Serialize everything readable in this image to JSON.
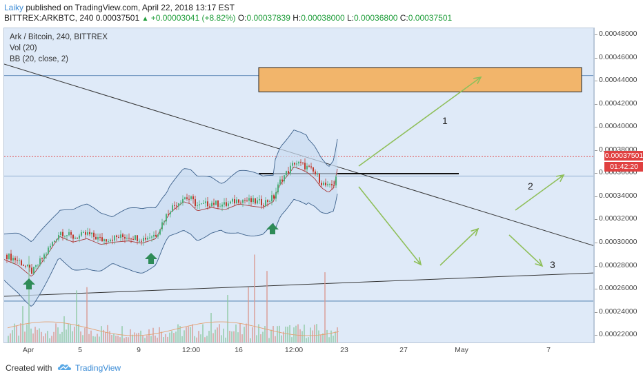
{
  "header": {
    "author": "Laiky",
    "published_text": "published on TradingView.com, April 22, 2018 13:17 EST",
    "symbol_line": "BITTREX:ARKBTC, 240",
    "last": "0.00037501",
    "change": "+0.00003041 (+8.82%)",
    "o_label": "O:",
    "o_value": "0.00037839",
    "h_label": "H:",
    "h_value": "0.00038000",
    "l_label": "L:",
    "l_value": "0.00036800",
    "c_label": "C:",
    "c_value": "0.00037501"
  },
  "legend": {
    "title": "Ark / Bitcoin, 240, BITTREX",
    "vol": "Vol (20)",
    "bb": "BB (20, close, 2)"
  },
  "yaxis": {
    "labels": [
      "0.00048000",
      "0.00046000",
      "0.00044000",
      "0.00042000",
      "0.00040000",
      "0.00038000",
      "0.00036000",
      "0.00034000",
      "0.00032000",
      "0.00030000",
      "0.00028000",
      "0.00026000",
      "0.00024000",
      "0.00022000"
    ],
    "price_tag": "0.00037501",
    "time_tag": "01:42:20"
  },
  "xaxis": {
    "labels": [
      "Apr",
      "5",
      "9",
      "12:00",
      "16",
      "12:00",
      "23",
      "27",
      "May",
      "7"
    ]
  },
  "annotations": {
    "a1": "1",
    "a2": "2",
    "a3": "3"
  },
  "footer": {
    "created_with": "Created with",
    "brand": "TradingView"
  },
  "colors": {
    "chart_bg": "#dfeaf8",
    "candle_up": "#4caf7a",
    "candle_down": "#c0392b",
    "bb_band": "#3a5f8a",
    "bb_basis": "#a83a3a",
    "arrow_green": "#8fbf5a",
    "up_marker": "#2e8b57",
    "target_box": "#f2b56b",
    "price_tag": "#e04040"
  },
  "chart_data": {
    "type": "candlestick",
    "title": "Ark / Bitcoin, 240, BITTREX",
    "ylim": [
      0.000213,
      0.000486
    ],
    "levels": {
      "last": 0.00037501,
      "support_top": 0.000445,
      "support_bottom": 0.00025,
      "target_low": 0.000431,
      "target_high": 0.000452,
      "breakout": 0.000358
    },
    "price_path_anchors": [
      [
        0,
        0.00029
      ],
      [
        20,
        0.000285
      ],
      [
        40,
        0.000275
      ],
      [
        60,
        0.000292
      ],
      [
        80,
        0.00031
      ],
      [
        100,
        0.000305
      ],
      [
        120,
        0.000308
      ],
      [
        140,
        0.000303
      ],
      [
        160,
        0.000305
      ],
      [
        180,
        0.000306
      ],
      [
        200,
        0.000304
      ],
      [
        220,
        0.000308
      ],
      [
        230,
        0.00032
      ],
      [
        240,
        0.00033
      ],
      [
        250,
        0.000335
      ],
      [
        260,
        0.00034
      ],
      [
        270,
        0.000338
      ],
      [
        280,
        0.000332
      ],
      [
        300,
        0.000335
      ],
      [
        320,
        0.000333
      ],
      [
        340,
        0.000338
      ],
      [
        360,
        0.000336
      ],
      [
        375,
        0.000335
      ],
      [
        390,
        0.00034
      ],
      [
        400,
        0.000355
      ],
      [
        410,
        0.000362
      ],
      [
        420,
        0.00037
      ],
      [
        430,
        0.000368
      ],
      [
        440,
        0.000365
      ],
      [
        450,
        0.00036
      ],
      [
        460,
        0.000352
      ],
      [
        470,
        0.000348
      ],
      [
        478,
        0.000352
      ],
      [
        485,
        0.000375
      ]
    ]
  }
}
